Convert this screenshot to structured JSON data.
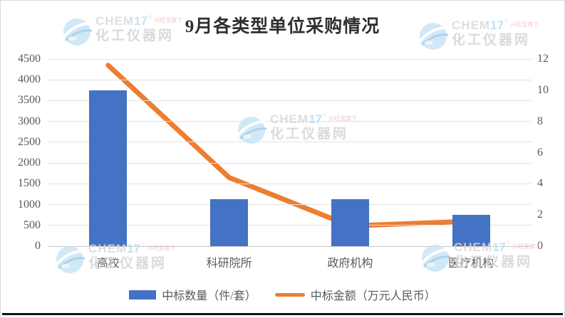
{
  "title": "9月各类型单位采购情况",
  "watermark": {
    "brand_chem": "CHEM",
    "brand_num": "17",
    "reg_mark": "®",
    "sub_brand": "兴旺宝旗下",
    "site_name": "化工仪器网"
  },
  "chart_data": {
    "type": "bar",
    "combo": "bar+line dual axis",
    "title": "9月各类型单位采购情况",
    "categories": [
      "高校",
      "科研院所",
      "政府机构",
      "医疗机构"
    ],
    "series": [
      {
        "name": "中标数量（件/套）",
        "type": "bar",
        "axis": "left",
        "color": "#4472C4",
        "values": [
          3750,
          1130,
          1130,
          760
        ]
      },
      {
        "name": "中标金额（万元人民币）",
        "type": "line",
        "axis": "right",
        "color": "#ED7D31",
        "values": [
          11.6,
          4.4,
          1.3,
          1.6
        ]
      }
    ],
    "left_axis": {
      "min": 0,
      "max": 4500,
      "step": 500,
      "ticks": [
        0,
        500,
        1000,
        1500,
        2000,
        2500,
        3000,
        3500,
        4000,
        4500
      ]
    },
    "right_axis": {
      "min": 0,
      "max": 12,
      "step": 2,
      "ticks": [
        0,
        2,
        4,
        6,
        8,
        10,
        12
      ]
    },
    "grid": true,
    "legend_position": "bottom"
  }
}
